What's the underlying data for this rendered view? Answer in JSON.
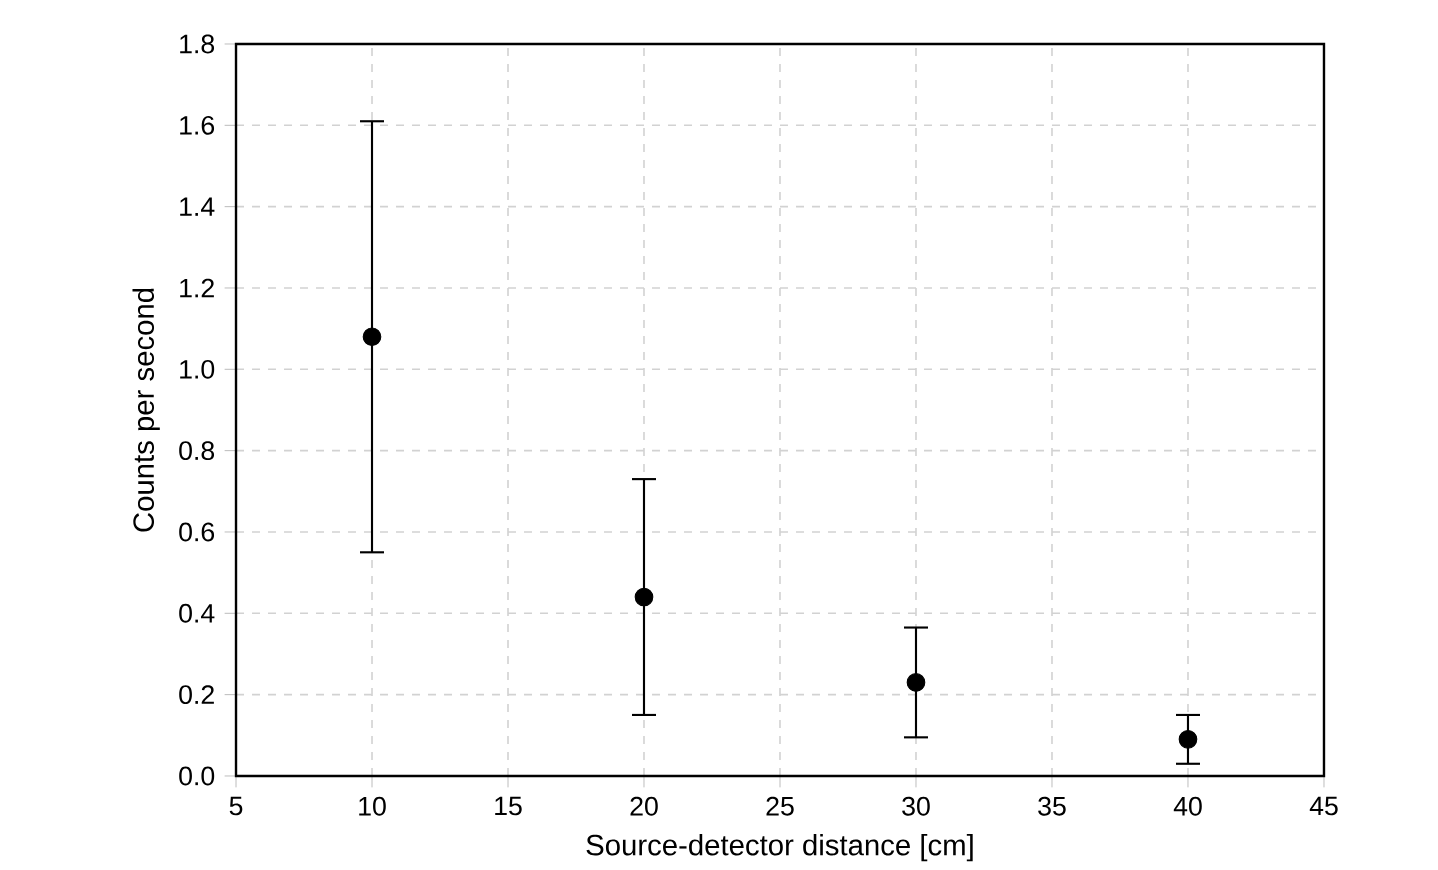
{
  "chart_data": {
    "type": "scatter",
    "xlabel": "Source-detector distance [cm]",
    "ylabel": "Counts per second",
    "x": [
      10,
      20,
      30,
      40
    ],
    "series": [
      {
        "color": "#000000",
        "values": [
          1.08,
          0.44,
          0.23,
          0.09
        ],
        "errors": [
          0.53,
          0.29,
          0.135,
          0.06
        ]
      }
    ],
    "xlim": [
      5,
      45
    ],
    "xticks": [
      5,
      10,
      15,
      20,
      25,
      30,
      35,
      40,
      45
    ],
    "ylim": [
      0,
      1.8
    ],
    "yticks": [
      {
        "value": 0,
        "label": "0.0"
      },
      {
        "value": 0.2,
        "label": "0.2"
      },
      {
        "value": 0.4,
        "label": "0.4"
      },
      {
        "value": 0.6,
        "label": "0.6"
      },
      {
        "value": 0.8,
        "label": "0.8"
      },
      {
        "value": 1.0,
        "label": "1.0"
      },
      {
        "value": 1.2,
        "label": "1.2"
      },
      {
        "value": 1.4,
        "label": "1.4"
      },
      {
        "value": 1.6,
        "label": "1.6"
      },
      {
        "value": 1.8,
        "label": "1.8"
      }
    ],
    "grid": true,
    "marker": "circle",
    "line_style": "none"
  }
}
